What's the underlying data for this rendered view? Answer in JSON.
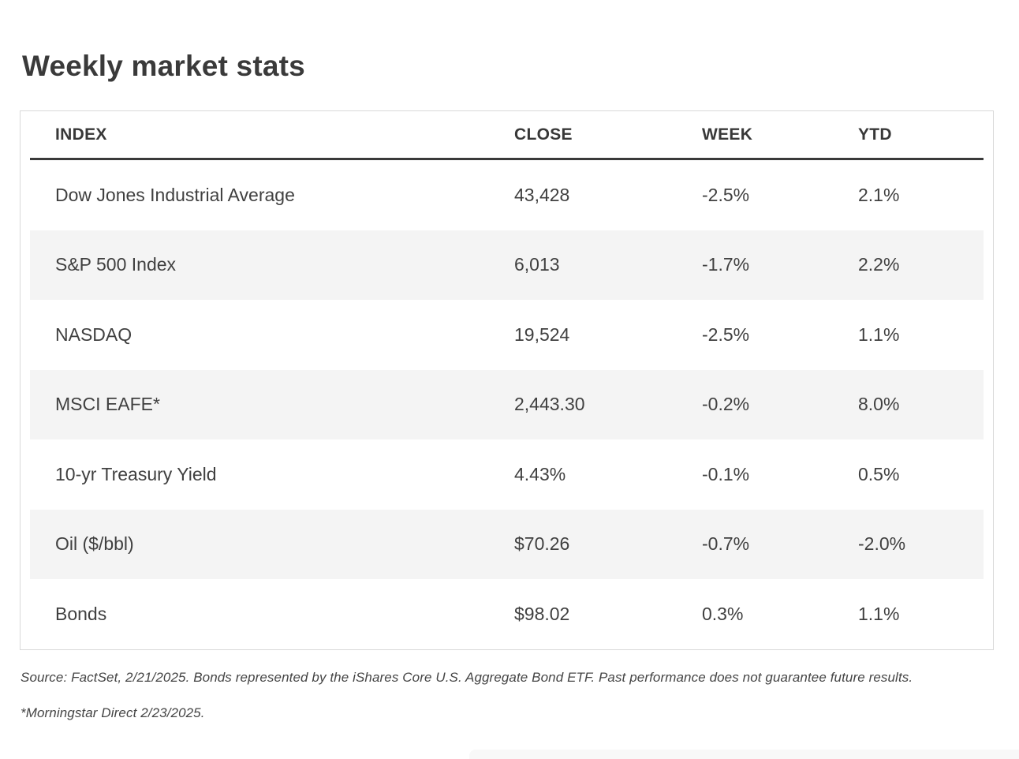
{
  "title": "Weekly market stats",
  "table": {
    "columns": [
      "INDEX",
      "CLOSE",
      "WEEK",
      "YTD"
    ],
    "rows": [
      {
        "index": "Dow Jones Industrial Average",
        "close": "43,428",
        "week": "-2.5%",
        "ytd": "2.1%"
      },
      {
        "index": "S&P 500 Index",
        "close": "6,013",
        "week": "-1.7%",
        "ytd": "2.2%"
      },
      {
        "index": "NASDAQ",
        "close": "19,524",
        "week": "-2.5%",
        "ytd": "1.1%"
      },
      {
        "index": "MSCI EAFE*",
        "close": "2,443.30",
        "week": "-0.2%",
        "ytd": "8.0%"
      },
      {
        "index": "10-yr Treasury Yield",
        "close": "4.43%",
        "week": "-0.1%",
        "ytd": "0.5%"
      },
      {
        "index": "Oil ($/bbl)",
        "close": "$70.26",
        "week": "-0.7%",
        "ytd": "-2.0%"
      },
      {
        "index": "Bonds",
        "close": "$98.02",
        "week": "0.3%",
        "ytd": "1.1%"
      }
    ]
  },
  "chart_data": {
    "type": "table",
    "title": "Weekly market stats",
    "columns": [
      "INDEX",
      "CLOSE",
      "WEEK",
      "YTD"
    ],
    "rows": [
      [
        "Dow Jones Industrial Average",
        "43,428",
        "-2.5%",
        "2.1%"
      ],
      [
        "S&P 500 Index",
        "6,013",
        "-1.7%",
        "2.2%"
      ],
      [
        "NASDAQ",
        "19,524",
        "-2.5%",
        "1.1%"
      ],
      [
        "MSCI EAFE*",
        "2,443.30",
        "-0.2%",
        "8.0%"
      ],
      [
        "10-yr Treasury Yield",
        "4.43%",
        "-0.1%",
        "0.5%"
      ],
      [
        "Oil ($/bbl)",
        "$70.26",
        "-0.7%",
        "-2.0%"
      ],
      [
        "Bonds",
        "$98.02",
        "0.3%",
        "1.1%"
      ]
    ]
  },
  "footnotes": {
    "source": "Source: FactSet, 2/21/2025. Bonds represented by the iShares Core U.S. Aggregate Bond ETF. Past performance does not guarantee future results.",
    "asterisk": "*Morningstar Direct 2/23/2025."
  },
  "colors": {
    "title_text": "#3a3a3a",
    "body_text": "#404040",
    "stripe": "#f4f4f4",
    "card_border": "#d9d9d9",
    "header_rule": "#3a3a3a",
    "background": "#ffffff"
  }
}
